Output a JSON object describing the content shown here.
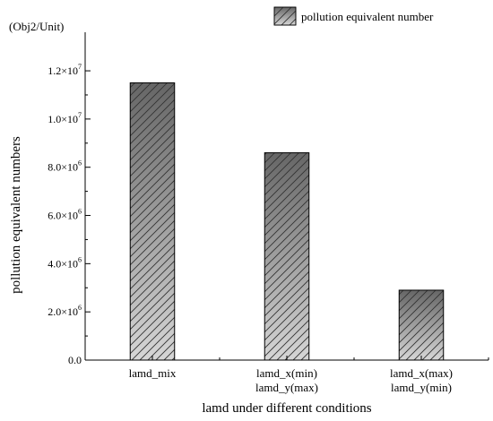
{
  "chart_data": {
    "type": "bar",
    "title": "",
    "unit_label": "(Obj2/Unit)",
    "xlabel": "lamd under different conditions",
    "ylabel": "pollution equivalent numbers",
    "legend": {
      "label": "pollution equivalent number",
      "placement": "top-right"
    },
    "categories": [
      {
        "line1": "lamd_mix",
        "line2": ""
      },
      {
        "line1": "lamd_x(min)",
        "line2": "lamd_y(max)"
      },
      {
        "line1": "lamd_x(max)",
        "line2": "lamd_y(min)"
      }
    ],
    "series": [
      {
        "values": [
          11500000,
          8600000,
          2900000
        ]
      }
    ],
    "ylim": [
      0,
      13600000
    ],
    "yticks": [
      {
        "value": 0,
        "mantissa": "0.0",
        "exp": ""
      },
      {
        "value": 2000000,
        "mantissa": "2.0×10",
        "exp": "6"
      },
      {
        "value": 4000000,
        "mantissa": "4.0×10",
        "exp": "6"
      },
      {
        "value": 6000000,
        "mantissa": "6.0×10",
        "exp": "6"
      },
      {
        "value": 8000000,
        "mantissa": "8.0×10",
        "exp": "6"
      },
      {
        "value": 10000000,
        "mantissa": "1.0×10",
        "exp": "7"
      },
      {
        "value": 12000000,
        "mantissa": "1.2×10",
        "exp": "7"
      }
    ],
    "grid": false,
    "bar_fill": "hatched gradient",
    "colors": {
      "bar_dark": "#666666",
      "bar_light": "#d6d6d6",
      "hatch": "#333333",
      "axis": "#000000"
    }
  }
}
